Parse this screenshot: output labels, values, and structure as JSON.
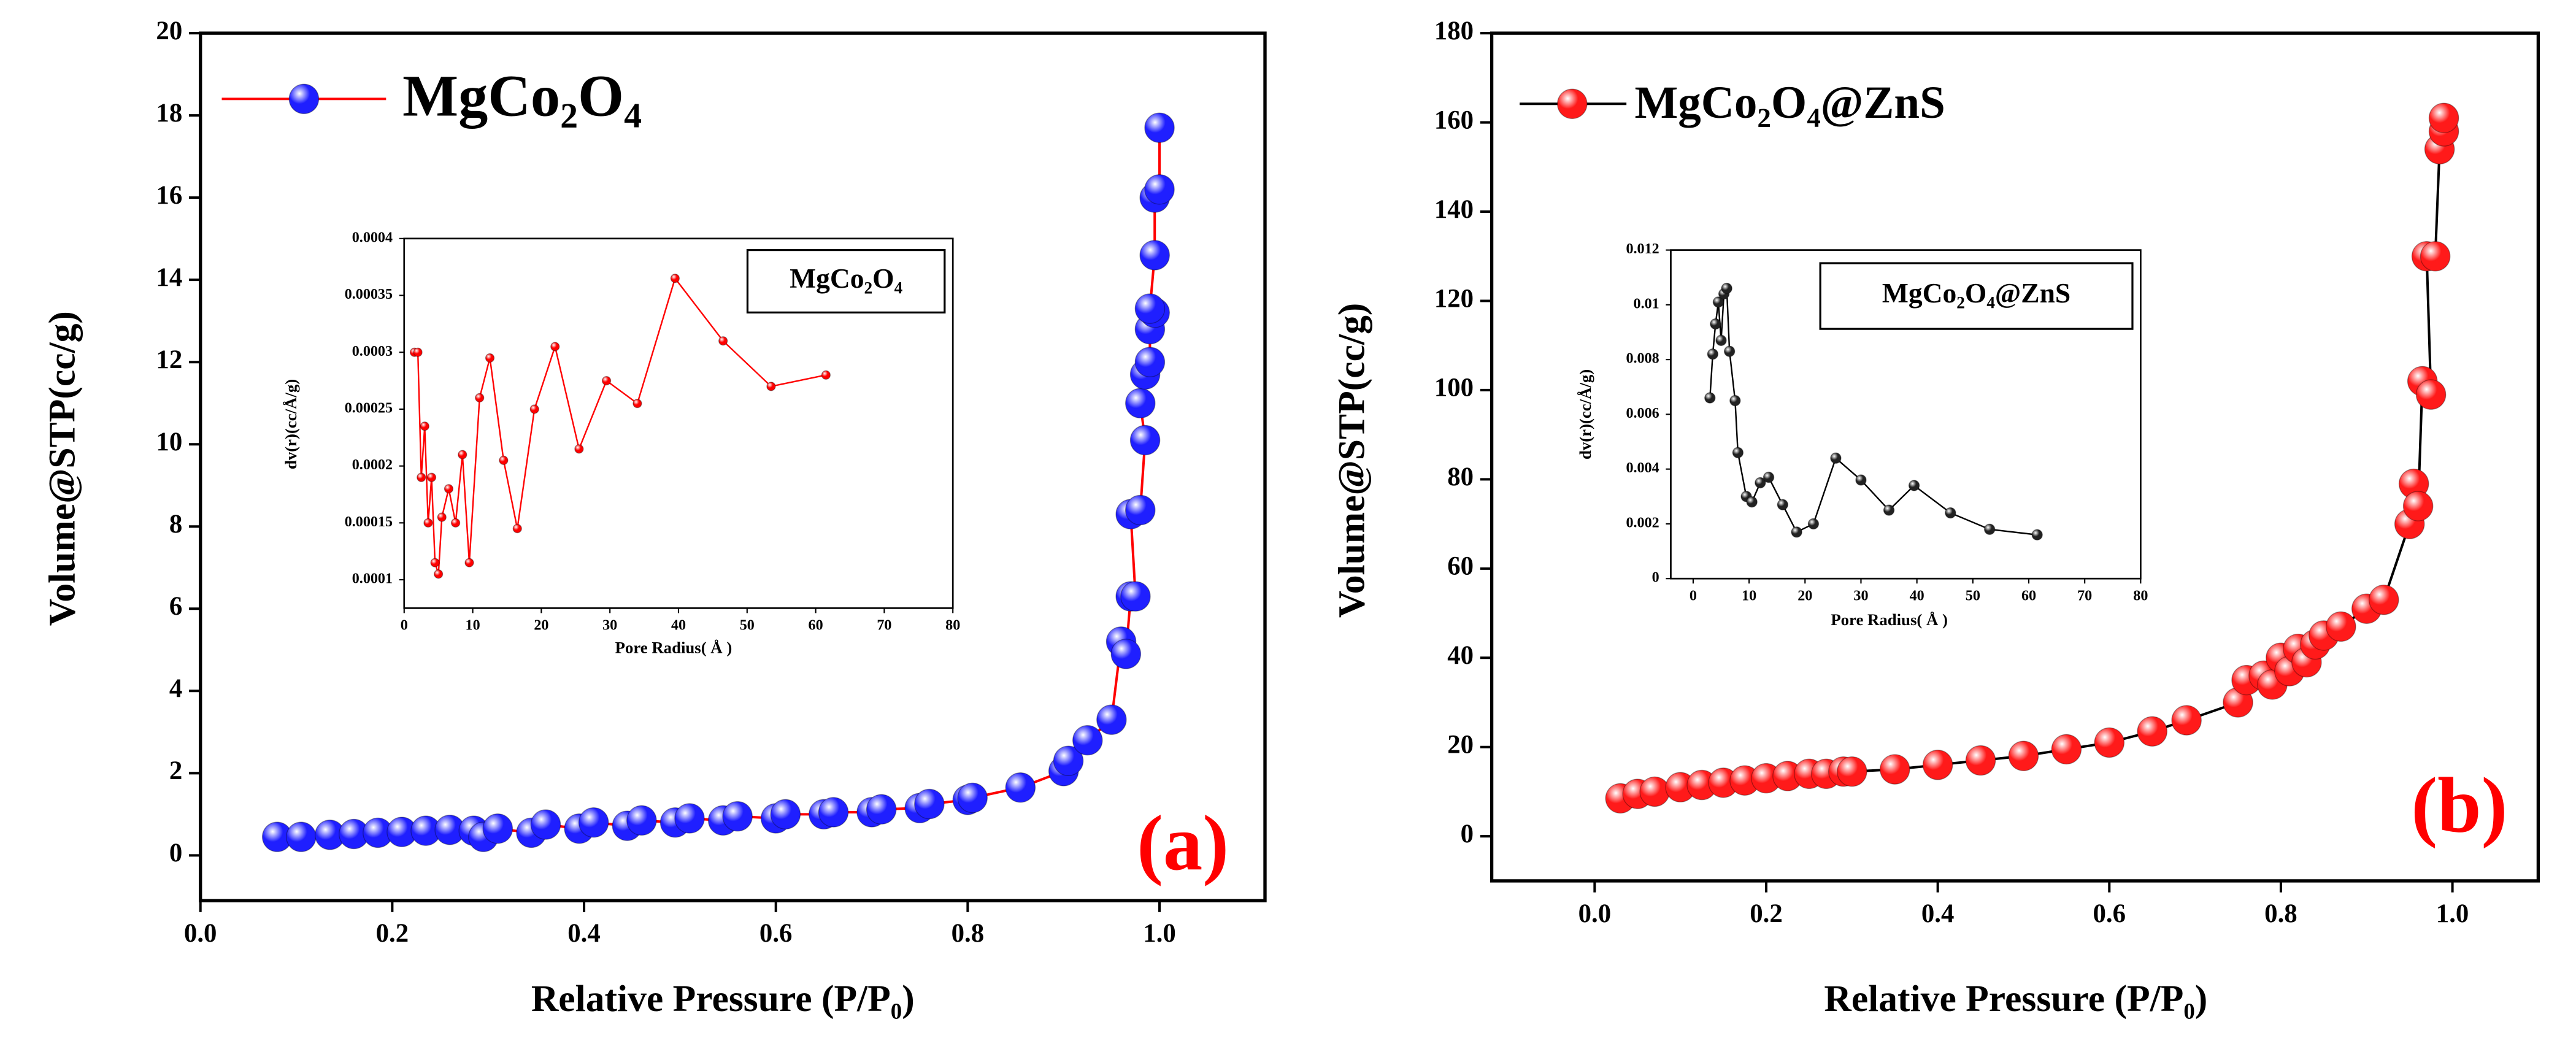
{
  "chart_data": [
    {
      "type": "scatter",
      "xlabel": "Relative Pressure (P/P₀)",
      "ylabel": "Volume@STP(cc/g)",
      "annotation": "(a)",
      "annotation_color": "#ff0000",
      "x": [
        0.08,
        0.105,
        0.135,
        0.16,
        0.185,
        0.21,
        0.235,
        0.26,
        0.285,
        0.295,
        0.31,
        0.345,
        0.36,
        0.395,
        0.41,
        0.445,
        0.46,
        0.495,
        0.51,
        0.545,
        0.56,
        0.6,
        0.61,
        0.65,
        0.66,
        0.7,
        0.71,
        0.75,
        0.76,
        0.8,
        0.805,
        0.855,
        0.9,
        0.905,
        0.925,
        0.95,
        0.96,
        0.965,
        0.97,
        0.975,
        0.97,
        0.98,
        0.985,
        0.98,
        0.985,
        0.99,
        0.99,
        0.995,
        0.99,
        0.995,
        0.995,
        1.0,
        1.0
      ],
      "series": [
        {
          "name": "MgCo₂O₄",
          "color": "#1f1fff",
          "line_color": "#ff0000",
          "values": [
            0.45,
            0.45,
            0.5,
            0.52,
            0.55,
            0.57,
            0.6,
            0.62,
            0.6,
            0.45,
            0.65,
            0.55,
            0.75,
            0.65,
            0.8,
            0.72,
            0.85,
            0.8,
            0.9,
            0.85,
            0.95,
            0.9,
            1.0,
            1.0,
            1.05,
            1.05,
            1.12,
            1.15,
            1.25,
            1.35,
            1.4,
            1.65,
            2.05,
            2.3,
            2.8,
            3.3,
            5.2,
            4.9,
            6.3,
            6.3,
            8.3,
            8.4,
            10.1,
            11.0,
            11.7,
            12.0,
            12.8,
            13.2,
            13.3,
            14.6,
            16.0,
            16.2,
            17.7
          ]
        }
      ],
      "xlim": [
        0,
        1.11
      ],
      "ylim": [
        -1.1,
        20
      ],
      "xticks": [
        {
          "value": 0,
          "label": "0.0"
        },
        0.2,
        0.4,
        0.6,
        0.8,
        {
          "value": 1,
          "label": "1.0"
        }
      ],
      "yticks": [
        0,
        2,
        4,
        6,
        8,
        10,
        12,
        14,
        16,
        18,
        20
      ]
    },
    {
      "type": "scatter",
      "xlabel": "Pore Radius( Å )",
      "ylabel": "dv(r)(cc/Å/g)",
      "annotation": "MgCo₂O₄",
      "annotation_color": "#000000",
      "x": [
        1.5,
        2,
        2.5,
        3,
        3.5,
        4,
        4.5,
        5,
        5.5,
        6.5,
        7.5,
        8.5,
        9.5,
        11,
        12.5,
        14.5,
        16.5,
        19,
        22,
        25.5,
        29.5,
        34,
        39.5,
        46.5,
        53.5,
        61.5
      ],
      "values": [
        0.0003,
        0.0003,
        0.00019,
        0.000235,
        0.00015,
        0.00019,
        0.000115,
        0.000105,
        0.000155,
        0.00018,
        0.00015,
        0.00021,
        0.000115,
        0.00026,
        0.000295,
        0.000205,
        0.000145,
        0.00025,
        0.000305,
        0.000215,
        0.000275,
        0.000255,
        0.000365,
        0.00031,
        0.00027,
        0.00028
      ],
      "color": "#ff0000",
      "line_color": "#ff0000",
      "xlim": [
        0,
        80
      ],
      "ylim": [
        7.5e-05,
        0.0004
      ],
      "xticks": [
        0,
        10,
        20,
        30,
        40,
        50,
        60,
        70,
        80
      ],
      "yticks": [
        0.0001,
        0.00015,
        0.0002,
        0.00025,
        0.0003,
        0.00035,
        0.0004
      ]
    },
    {
      "type": "scatter",
      "xlabel": "Relative Pressure (P/P₀)",
      "ylabel": "Volume@STP(cc/g)",
      "annotation": "(b)",
      "annotation_color": "#ff0000",
      "x": [
        0.03,
        0.05,
        0.07,
        0.1,
        0.125,
        0.15,
        0.175,
        0.2,
        0.225,
        0.25,
        0.27,
        0.29,
        0.3,
        0.35,
        0.4,
        0.45,
        0.5,
        0.55,
        0.6,
        0.65,
        0.69,
        0.75,
        0.76,
        0.78,
        0.79,
        0.8,
        0.81,
        0.82,
        0.83,
        0.84,
        0.85,
        0.87,
        0.9,
        0.92,
        0.95,
        0.955,
        0.96,
        0.965,
        0.975,
        0.97,
        0.98,
        0.985,
        0.99,
        0.99
      ],
      "series": [
        {
          "name": "MgCo₂O₄@ZnS",
          "color": "#ff1a1a",
          "line_color": "#000000",
          "values": [
            8.5,
            9.5,
            10,
            11,
            11.5,
            12,
            12.5,
            13,
            13.5,
            14,
            14,
            14.5,
            14.5,
            15,
            16,
            17,
            18,
            19.5,
            21,
            23.5,
            26,
            30,
            35,
            36,
            34,
            40,
            37,
            42,
            39,
            43,
            45,
            47,
            51,
            53,
            70,
            79,
            74,
            102,
            99,
            130,
            130,
            154,
            158,
            161
          ]
        }
      ],
      "xlim": [
        -0.12,
        1.1
      ],
      "ylim": [
        -10,
        180
      ],
      "xticks": [
        {
          "value": 0,
          "label": "0.0"
        },
        0.2,
        0.4,
        0.6,
        0.8,
        {
          "value": 1,
          "label": "1.0"
        }
      ],
      "yticks": [
        0,
        20,
        40,
        60,
        80,
        100,
        120,
        140,
        160,
        180
      ]
    },
    {
      "type": "scatter",
      "xlabel": "Pore Radius( Å )",
      "ylabel": "dv(r)(cc/Å/g)",
      "annotation": "MgCo₂O₄@ZnS",
      "annotation_color": "#000000",
      "x": [
        3,
        3.5,
        4,
        4.5,
        5,
        5.5,
        6,
        6.5,
        7.5,
        8,
        9.5,
        10.5,
        12,
        13.5,
        16,
        18.5,
        21.5,
        25.5,
        30,
        35,
        39.5,
        46,
        53,
        61.5
      ],
      "values": [
        0.0066,
        0.0082,
        0.0093,
        0.0101,
        0.0087,
        0.0104,
        0.0106,
        0.0083,
        0.0065,
        0.0046,
        0.003,
        0.0028,
        0.0035,
        0.0037,
        0.0027,
        0.0017,
        0.002,
        0.0044,
        0.0036,
        0.0025,
        0.0034,
        0.0024,
        0.0018,
        0.0016
      ],
      "color": "#222222",
      "line_color": "#000000",
      "xlim": [
        -4,
        80
      ],
      "ylim": [
        0,
        0.012
      ],
      "xticks": [
        0,
        10,
        20,
        30,
        40,
        50,
        60,
        70,
        80
      ],
      "yticks": [
        0,
        0.002,
        0.004,
        0.006,
        0.008,
        0.01,
        0.012
      ]
    }
  ]
}
